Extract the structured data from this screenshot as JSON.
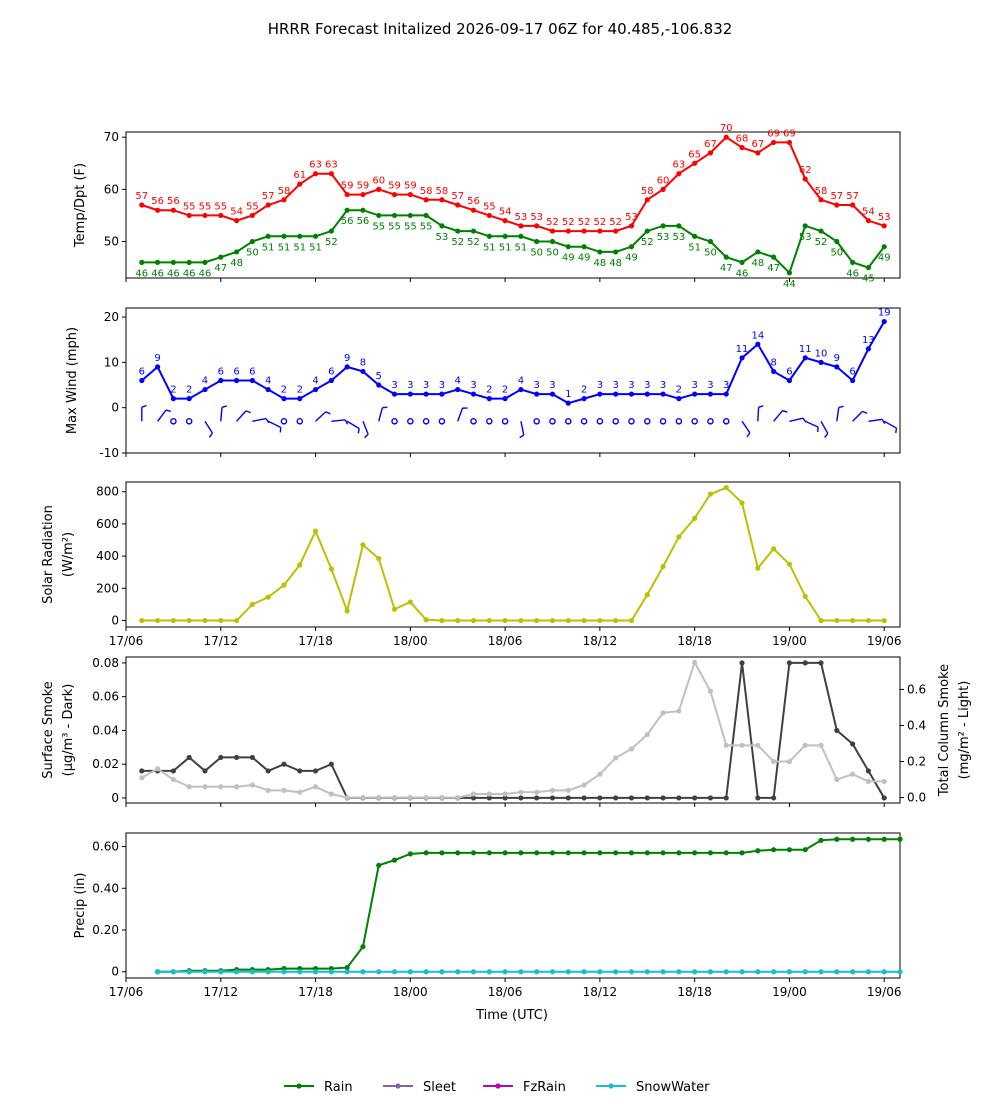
{
  "title": "HRRR Forecast Initalized 2026-09-17 06Z for 40.485,-106.832",
  "x_tick_labels": [
    "17/06",
    "17/12",
    "17/18",
    "18/00",
    "18/06",
    "18/12",
    "18/18",
    "19/00",
    "19/06"
  ],
  "x_axis_label": "Time (UTC)",
  "hours": [
    1,
    2,
    3,
    4,
    5,
    6,
    7,
    8,
    9,
    10,
    11,
    12,
    13,
    14,
    15,
    16,
    17,
    18,
    19,
    20,
    21,
    22,
    23,
    24,
    25,
    26,
    27,
    28,
    29,
    30,
    31,
    32,
    33,
    34,
    35,
    36,
    37,
    38,
    39,
    40,
    41,
    42,
    43,
    44,
    45,
    46,
    47,
    48
  ],
  "legend": [
    {
      "label": "Rain",
      "color": "#008000"
    },
    {
      "label": "Sleet",
      "color": "#8064a2"
    },
    {
      "label": "FzRain",
      "color": "#c000c0"
    },
    {
      "label": "SnowWater",
      "color": "#17becf"
    }
  ],
  "chart_data": [
    {
      "type": "line",
      "ylabel": "Temp/Dpt (F)",
      "ylim": [
        43,
        71
      ],
      "yticks": [
        50,
        60,
        70
      ],
      "series": [
        {
          "color": "#ff0000",
          "values": [
            57,
            56,
            56,
            55,
            55,
            55,
            54,
            55,
            57,
            58,
            61,
            63,
            63,
            59,
            59,
            60,
            59,
            59,
            58,
            58,
            57,
            56,
            55,
            54,
            53,
            53,
            52,
            52,
            52,
            52,
            52,
            53,
            58,
            60,
            63,
            65,
            67,
            70,
            68,
            67,
            69,
            69,
            62,
            58,
            57,
            57,
            54,
            53
          ]
        },
        {
          "color": "#008000",
          "values": [
            46,
            46,
            46,
            46,
            46,
            47,
            48,
            50,
            51,
            51,
            51,
            51,
            52,
            56,
            56,
            55,
            55,
            55,
            55,
            53,
            52,
            52,
            51,
            51,
            51,
            50,
            50,
            49,
            49,
            48,
            48,
            49,
            52,
            53,
            53,
            51,
            50,
            47,
            46,
            48,
            47,
            44,
            53,
            52,
            50,
            46,
            45,
            49
          ]
        }
      ]
    },
    {
      "type": "line",
      "ylabel": "Max Wind (mph)",
      "ylim": [
        -10,
        22
      ],
      "yticks": [
        -10,
        0,
        10,
        20
      ],
      "series": [
        {
          "color": "#0000ff",
          "values": [
            6,
            9,
            2,
            2,
            4,
            6,
            6,
            6,
            4,
            2,
            2,
            4,
            6,
            9,
            8,
            5,
            3,
            3,
            3,
            3,
            4,
            3,
            2,
            2,
            4,
            3,
            3,
            1,
            2,
            3,
            3,
            3,
            3,
            3,
            2,
            3,
            3,
            3,
            11,
            14,
            8,
            6,
            11,
            10,
            9,
            6,
            13,
            19
          ]
        }
      ],
      "barbs": "wind barbs plotted along y = -3"
    },
    {
      "type": "line",
      "ylabel": "Solar Radiation",
      "ylabel_unit": "(W/m²)",
      "ylim": [
        -40,
        860
      ],
      "yticks": [
        0,
        200,
        400,
        600,
        800
      ],
      "series": [
        {
          "color": "#bfbf00",
          "values": [
            0,
            0,
            0,
            0,
            0,
            0,
            0,
            100,
            145,
            220,
            345,
            555,
            320,
            60,
            470,
            385,
            70,
            115,
            5,
            0,
            0,
            0,
            0,
            0,
            0,
            0,
            0,
            0,
            0,
            0,
            0,
            0,
            160,
            335,
            520,
            635,
            785,
            825,
            730,
            325,
            445,
            350,
            150,
            0,
            0,
            0,
            0,
            0
          ]
        }
      ]
    },
    {
      "type": "line",
      "ylabel": "Surface Smoke",
      "ylabel_unit": "(μg/m³ - Dark)",
      "ylabel_right": "Total Column Smoke",
      "ylabel_right_unit": "(mg/m² - Light)",
      "ylim": [
        -0.003,
        0.0835
      ],
      "yticks": [
        0.0,
        0.02,
        0.04,
        0.06,
        0.08
      ],
      "ylim_right": [
        -0.03,
        0.78
      ],
      "yticks_right": [
        0.0,
        0.2,
        0.4,
        0.6
      ],
      "series": [
        {
          "color": "#404040",
          "axis": "left",
          "values": [
            0.016,
            0.016,
            0.016,
            0.024,
            0.016,
            0.024,
            0.024,
            0.024,
            0.016,
            0.02,
            0.016,
            0.016,
            0.02,
            0,
            0,
            0,
            0,
            0,
            0,
            0,
            0,
            0,
            0,
            0,
            0,
            0,
            0,
            0,
            0,
            0,
            0,
            0,
            0,
            0,
            0,
            0,
            0,
            0,
            0.08,
            0,
            0,
            0.08,
            0.08,
            0.08,
            0.04,
            0.032,
            0.016,
            0
          ]
        },
        {
          "color": "#c0c0c0",
          "axis": "right",
          "values": [
            0.11,
            0.16,
            0.1,
            0.06,
            0.06,
            0.06,
            0.06,
            0.07,
            0.04,
            0.04,
            0.03,
            0.06,
            0.02,
            0,
            0,
            0,
            0,
            0,
            0,
            0,
            0,
            0.02,
            0.02,
            0.02,
            0.03,
            0.03,
            0.04,
            0.04,
            0.07,
            0.13,
            0.22,
            0.27,
            0.35,
            0.47,
            0.48,
            0.75,
            0.59,
            0.29,
            0.29,
            0.29,
            0.2,
            0.2,
            0.29,
            0.29,
            0.1,
            0.13,
            0.09,
            0.09
          ]
        }
      ]
    },
    {
      "type": "line",
      "ylabel": "Precip (in)",
      "ylim": [
        -0.03,
        0.665
      ],
      "yticks": [
        0.0,
        0.2,
        0.4,
        0.6
      ],
      "series": [
        {
          "name": "Rain",
          "color": "#008000",
          "values": [
            0,
            0,
            0.005,
            0.005,
            0.005,
            0.01,
            0.01,
            0.01,
            0.015,
            0.015,
            0.015,
            0.015,
            0.02,
            0.12,
            0.51,
            0.535,
            0.565,
            0.57,
            0.57,
            0.57,
            0.57,
            0.57,
            0.57,
            0.57,
            0.57,
            0.57,
            0.57,
            0.57,
            0.57,
            0.57,
            0.57,
            0.57,
            0.57,
            0.57,
            0.57,
            0.57,
            0.57,
            0.57,
            0.58,
            0.585,
            0.585,
            0.585,
            0.63,
            0.635,
            0.635,
            0.635,
            0.635,
            0.635
          ]
        },
        {
          "name": "SnowWater",
          "color": "#17becf",
          "values": [
            0,
            0,
            0,
            0,
            0,
            0,
            0,
            0,
            0,
            0,
            0,
            0,
            0,
            0,
            0,
            0,
            0,
            0,
            0,
            0,
            0,
            0,
            0,
            0,
            0,
            0,
            0,
            0,
            0,
            0,
            0,
            0,
            0,
            0,
            0,
            0,
            0,
            0,
            0,
            0,
            0,
            0,
            0,
            0,
            0,
            0,
            0,
            0
          ]
        }
      ]
    }
  ]
}
